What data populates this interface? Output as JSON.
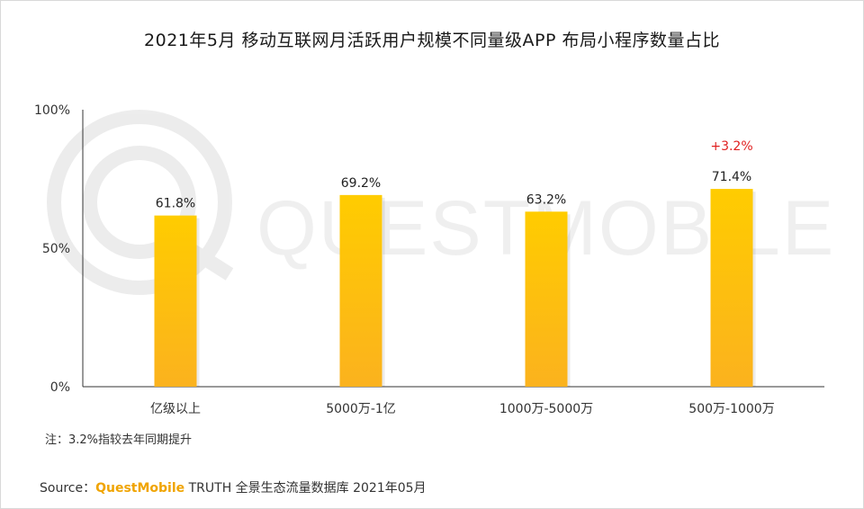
{
  "title": "2021年5月 移动互联网月活跃用户规模不同量级APP 布局小程序数量占比",
  "watermark": "QUESTMOBILE",
  "chart_data": {
    "type": "bar",
    "categories": [
      "亿级以上",
      "5000万-1亿",
      "1000万-5000万",
      "500万-1000万"
    ],
    "values": [
      61.8,
      69.2,
      63.2,
      71.4
    ],
    "data_labels": [
      "61.8%",
      "69.2%",
      "63.2%",
      "71.4%"
    ],
    "yticks": [
      "0%",
      "50%",
      "100%"
    ],
    "ylim": [
      0,
      100
    ],
    "annotations": [
      {
        "category": "500万-1000万",
        "text": "+3.2%",
        "color": "#e02020"
      }
    ],
    "bar_color_top": "#ffcc00",
    "bar_color_bottom": "#fbb21e",
    "legend": "none",
    "grid": false
  },
  "note": "注：3.2%指较去年同期提升",
  "source": {
    "label": "Source：",
    "brand": "QuestMobile",
    "text": "TRUTH 全景生态流量数据库 2021年05月"
  }
}
